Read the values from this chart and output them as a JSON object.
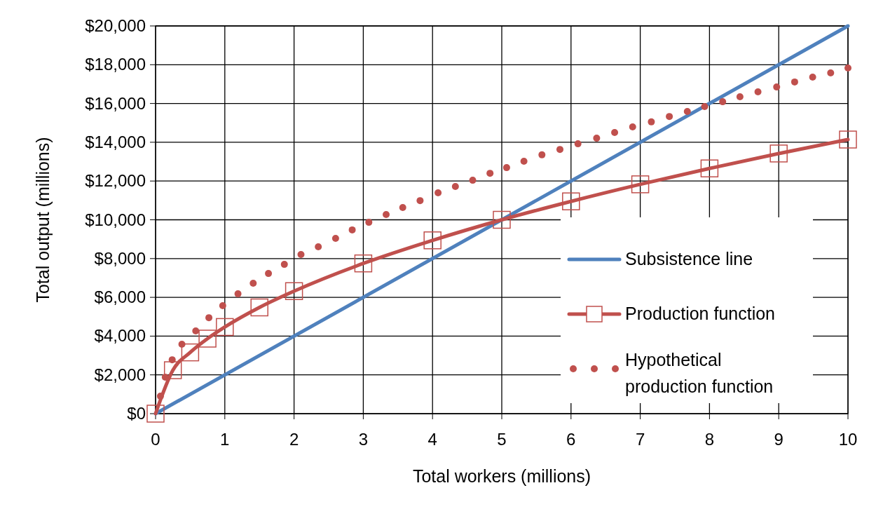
{
  "chart_data": {
    "type": "line",
    "xlabel": "Total workers (millions)",
    "ylabel": "Total output (millions)",
    "xlim": [
      0,
      10
    ],
    "xticks": [
      0,
      1,
      2,
      3,
      4,
      5,
      6,
      7,
      8,
      9,
      10
    ],
    "ylim": [
      0,
      20000
    ],
    "yticks": [
      {
        "value": 0,
        "label": "$0"
      },
      {
        "value": 2000,
        "label": "$2,000"
      },
      {
        "value": 4000,
        "label": "$4,000"
      },
      {
        "value": 6000,
        "label": "$6,000"
      },
      {
        "value": 8000,
        "label": "$8,000"
      },
      {
        "value": 10000,
        "label": "$10,000"
      },
      {
        "value": 12000,
        "label": "$12,000"
      },
      {
        "value": 14000,
        "label": "$14,000"
      },
      {
        "value": 16000,
        "label": "$16,000"
      },
      {
        "value": 18000,
        "label": "$18,000"
      },
      {
        "value": 20000,
        "label": "$20,000"
      }
    ],
    "grid": true,
    "legend": "bottom right",
    "series": [
      {
        "name": "Subsistence line",
        "color": "#4f81bd",
        "marker": "none",
        "line_style": "solid",
        "x": [
          0,
          10
        ],
        "values": [
          0,
          20000
        ]
      },
      {
        "name": "Production function",
        "color": "#c0504d",
        "marker": "square",
        "line_style": "solid",
        "x": [
          0,
          0.25,
          0.5,
          0.75,
          1,
          1.5,
          2,
          3,
          4,
          5,
          6,
          7,
          8,
          9,
          10
        ],
        "values": [
          0,
          2240,
          3160,
          3870,
          4470,
          5480,
          6320,
          7750,
          8940,
          10000,
          10950,
          11830,
          12650,
          13420,
          14140
        ]
      },
      {
        "name": "Hypothetical production function",
        "type": "scatter",
        "color": "#c0504d",
        "marker": "circle",
        "x": [
          0.07,
          0.14,
          0.24,
          0.38,
          0.58,
          0.77,
          0.97,
          1.19,
          1.41,
          1.63,
          1.86,
          2.1,
          2.35,
          2.6,
          2.84,
          3.08,
          3.33,
          3.57,
          3.82,
          4.08,
          4.33,
          4.58,
          4.83,
          5.07,
          5.32,
          5.58,
          5.84,
          6.1,
          6.37,
          6.63,
          6.89,
          7.16,
          7.42,
          7.68,
          7.93,
          8.19,
          8.44,
          8.7,
          8.97,
          9.23,
          9.49,
          9.75,
          10
        ],
        "values": [
          900,
          1880,
          2780,
          3580,
          4270,
          4950,
          5570,
          6180,
          6730,
          7230,
          7700,
          8210,
          8610,
          9040,
          9480,
          9870,
          10270,
          10630,
          10990,
          11390,
          11720,
          12040,
          12400,
          12690,
          13020,
          13350,
          13630,
          13920,
          14210,
          14500,
          14790,
          15050,
          15330,
          15590,
          15840,
          16090,
          16350,
          16600,
          16850,
          17110,
          17360,
          17580,
          17830
        ]
      }
    ]
  }
}
